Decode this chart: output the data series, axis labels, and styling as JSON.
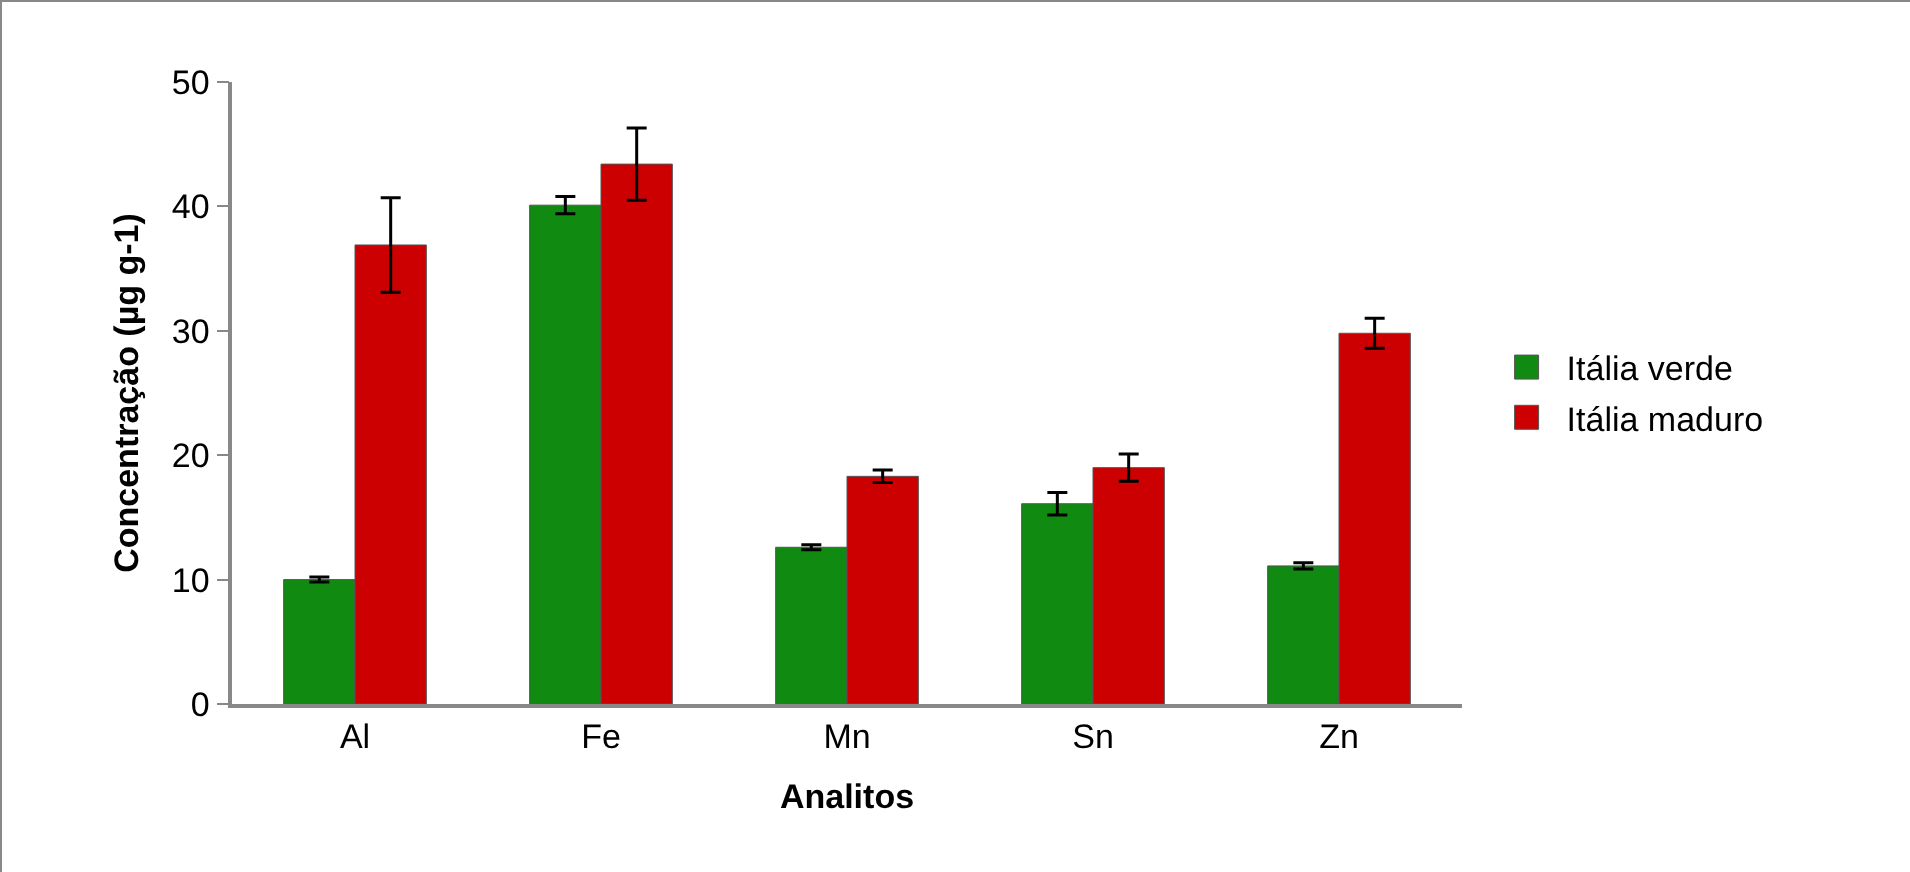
{
  "chart_data": {
    "type": "bar",
    "xlabel": "Analitos",
    "ylabel": "Concentração (µg g-1)",
    "categories": [
      "Al",
      "Fe",
      "Mn",
      "Sn",
      "Zn"
    ],
    "series": [
      {
        "name": "Itália verde",
        "color": "#108a10",
        "values": [
          10.0,
          40.1,
          12.6,
          16.1,
          11.1
        ],
        "errors": [
          0.2,
          0.7,
          0.2,
          0.9,
          0.25
        ]
      },
      {
        "name": "Itália maduro",
        "color": "#cc0000",
        "values": [
          36.9,
          43.4,
          18.3,
          19.0,
          29.8
        ],
        "errors": [
          3.8,
          2.9,
          0.5,
          1.1,
          1.2
        ]
      }
    ],
    "ylim": [
      0,
      50
    ],
    "yticks": [
      0,
      10,
      20,
      30,
      40,
      50
    ],
    "grid": false,
    "legend": "right"
  }
}
